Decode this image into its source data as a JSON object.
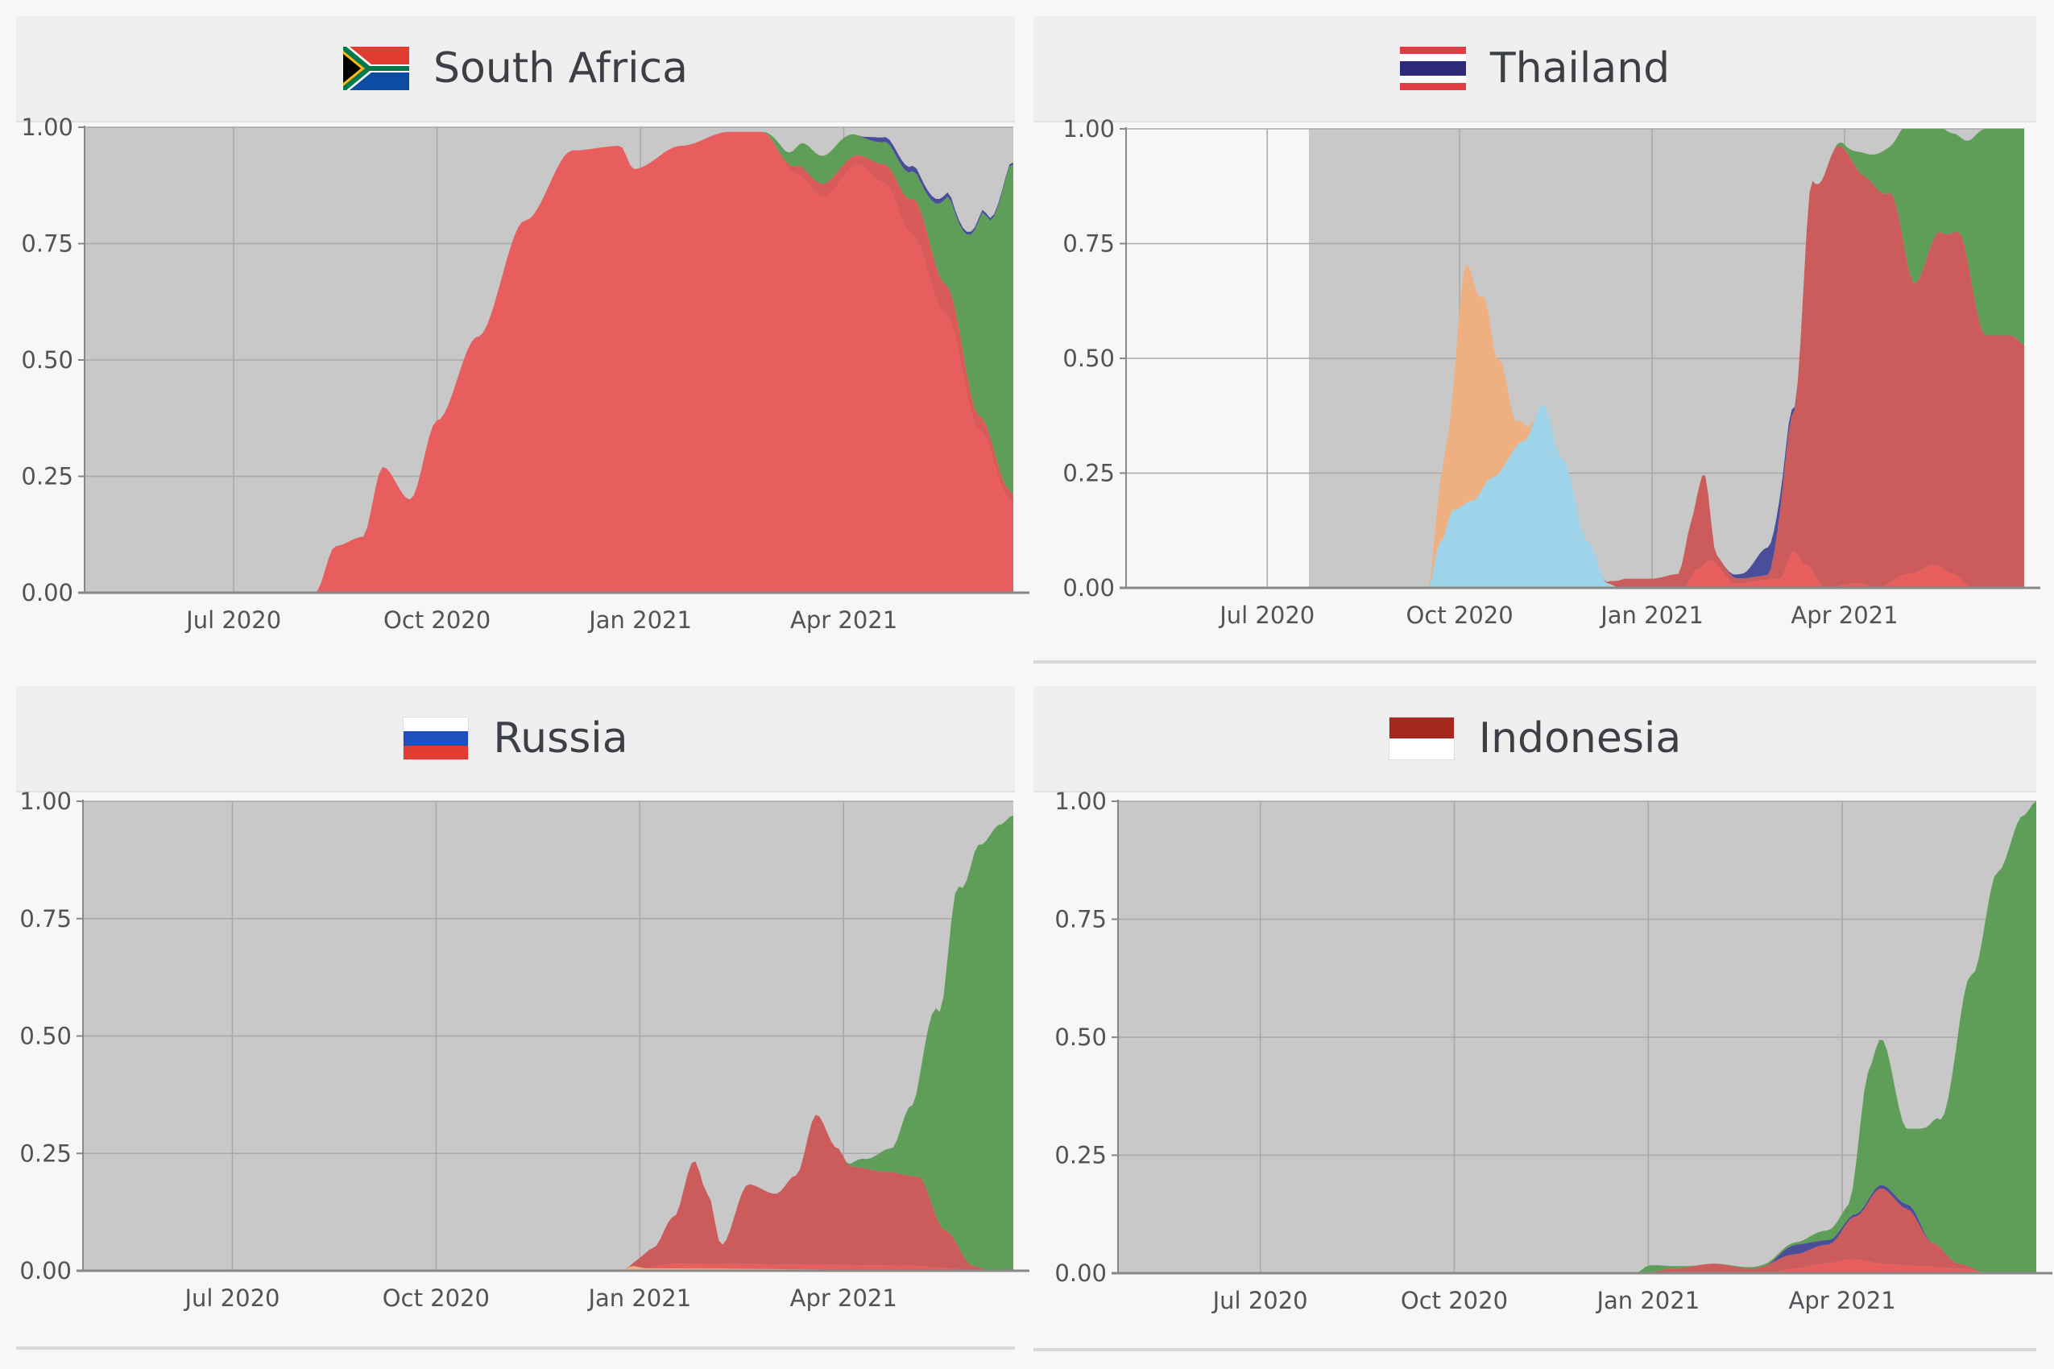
{
  "colors": {
    "plot_bg": "#c8c8c8",
    "page_bg": "#f7f7f7",
    "grid": "#a8a8a8",
    "axis": "#888888"
  },
  "panels": [
    {
      "country": "South Africa",
      "flag_icon": "south-africa-flag-icon"
    },
    {
      "country": "Thailand",
      "flag_icon": "thailand-flag-icon"
    },
    {
      "country": "Russia",
      "flag_icon": "russia-flag-icon"
    },
    {
      "country": "Indonesia",
      "flag_icon": "indonesia-flag-icon"
    }
  ],
  "chart_data": [
    {
      "type": "area",
      "title": "South Africa",
      "stacked": true,
      "x_ticks": [
        "Jul 2020",
        "Oct 2020",
        "Jan 2021",
        "Apr 2021"
      ],
      "x_tick_months": [
        4,
        7,
        10,
        13
      ],
      "y_ticks": [
        "0.00",
        "0.25",
        "0.50",
        "0.75",
        "1.00"
      ],
      "xlim": [
        1.8,
        15.5
      ],
      "ylim": [
        0,
        1
      ],
      "grid": true,
      "data_start_month": 1.8,
      "series": [
        {
          "color": "#e85d5e",
          "points": [
            [
              1.8,
              0
            ],
            [
              5.2,
              0
            ],
            [
              5.5,
              0.1
            ],
            [
              5.9,
              0.12
            ],
            [
              6.2,
              0.27
            ],
            [
              6.6,
              0.2
            ],
            [
              7.0,
              0.37
            ],
            [
              7.6,
              0.55
            ],
            [
              8.3,
              0.8
            ],
            [
              9.0,
              0.95
            ],
            [
              9.7,
              0.96
            ],
            [
              9.9,
              0.91
            ],
            [
              10.6,
              0.96
            ],
            [
              11.3,
              0.99
            ],
            [
              11.8,
              0.99
            ],
            [
              12.3,
              0.9
            ],
            [
              12.7,
              0.85
            ],
            [
              13.2,
              0.92
            ],
            [
              13.6,
              0.88
            ],
            [
              14.0,
              0.77
            ],
            [
              14.5,
              0.6
            ],
            [
              15.0,
              0.35
            ],
            [
              15.45,
              0.2
            ],
            [
              15.5,
              0.19
            ]
          ]
        },
        {
          "color": "#d95a5a",
          "points": [
            [
              1.8,
              0
            ],
            [
              12.0,
              0
            ],
            [
              12.4,
              0.02
            ],
            [
              12.8,
              0.03
            ],
            [
              13.2,
              0.02
            ],
            [
              13.6,
              0.04
            ],
            [
              14.1,
              0.08
            ],
            [
              14.6,
              0.06
            ],
            [
              15.0,
              0.03
            ],
            [
              15.5,
              0.02
            ]
          ]
        },
        {
          "color": "#5f9e59",
          "points": [
            [
              1.8,
              0
            ],
            [
              11.8,
              0
            ],
            [
              12.1,
              0.02
            ],
            [
              12.5,
              0.06
            ],
            [
              12.9,
              0.06
            ],
            [
              13.3,
              0.04
            ],
            [
              13.7,
              0.05
            ],
            [
              14.1,
              0.06
            ],
            [
              14.6,
              0.2
            ],
            [
              15.1,
              0.45
            ],
            [
              15.5,
              0.71
            ]
          ]
        },
        {
          "color": "#4a4e9a",
          "points": [
            [
              1.8,
              0
            ],
            [
              13.2,
              0
            ],
            [
              13.5,
              0.01
            ],
            [
              13.9,
              0.012
            ],
            [
              14.4,
              0.01
            ],
            [
              14.8,
              0.006
            ],
            [
              15.5,
              0.004
            ]
          ]
        }
      ]
    },
    {
      "type": "area",
      "title": "Thailand",
      "stacked": true,
      "x_ticks": [
        "Jul 2020",
        "Oct 2020",
        "Jan 2021",
        "Apr 2021"
      ],
      "x_tick_months": [
        4,
        7,
        10,
        13
      ],
      "y_ticks": [
        "0.00",
        "0.25",
        "0.50",
        "0.75",
        "1.00"
      ],
      "xlim": [
        1.8,
        15.8
      ],
      "ylim": [
        0,
        1
      ],
      "grid": true,
      "data_start_month": 4.65,
      "series": [
        {
          "color": "#9fd3ea",
          "points": [
            [
              4.65,
              0
            ],
            [
              6.5,
              0
            ],
            [
              6.7,
              0.1
            ],
            [
              6.9,
              0.17
            ],
            [
              7.2,
              0.19
            ],
            [
              7.5,
              0.24
            ],
            [
              8.0,
              0.32
            ],
            [
              8.3,
              0.4
            ],
            [
              8.6,
              0.28
            ],
            [
              9.0,
              0.1
            ],
            [
              9.3,
              0.01
            ],
            [
              9.5,
              0
            ],
            [
              15.8,
              0
            ]
          ]
        },
        {
          "color": "#efb081",
          "points": [
            [
              4.65,
              0
            ],
            [
              6.5,
              0
            ],
            [
              6.8,
              0.18
            ],
            [
              7.1,
              0.52
            ],
            [
              7.35,
              0.42
            ],
            [
              7.6,
              0.25
            ],
            [
              7.9,
              0.05
            ],
            [
              8.2,
              0
            ],
            [
              15.8,
              0
            ]
          ]
        },
        {
          "color": "#e85d5e",
          "points": [
            [
              4.65,
              0
            ],
            [
              10.5,
              0
            ],
            [
              10.7,
              0.04
            ],
            [
              10.9,
              0.06
            ],
            [
              11.3,
              0.01
            ],
            [
              12.0,
              0.02
            ],
            [
              12.2,
              0.08
            ],
            [
              12.4,
              0.05
            ],
            [
              12.7,
              0
            ],
            [
              13.2,
              0.01
            ],
            [
              13.5,
              0
            ],
            [
              14.0,
              0.03
            ],
            [
              14.4,
              0.05
            ],
            [
              14.7,
              0.03
            ],
            [
              15.0,
              0
            ],
            [
              15.8,
              0
            ]
          ]
        },
        {
          "color": "#cc5b5b",
          "points": [
            [
              4.65,
              0
            ],
            [
              9.2,
              0
            ],
            [
              9.6,
              0.02
            ],
            [
              10.0,
              0.02
            ],
            [
              10.4,
              0.03
            ],
            [
              10.6,
              0.12
            ],
            [
              10.8,
              0.2
            ],
            [
              11.0,
              0.02
            ],
            [
              11.4,
              0.01
            ],
            [
              11.8,
              0.01
            ],
            [
              12.2,
              0.3
            ],
            [
              12.5,
              0.85
            ],
            [
              12.9,
              0.96
            ],
            [
              13.3,
              0.89
            ],
            [
              13.7,
              0.85
            ],
            [
              14.1,
              0.63
            ],
            [
              14.5,
              0.73
            ],
            [
              14.8,
              0.75
            ],
            [
              15.2,
              0.55
            ],
            [
              15.6,
              0.55
            ],
            [
              15.8,
              0.53
            ]
          ]
        },
        {
          "color": "#4a4e9a",
          "points": [
            [
              4.65,
              0
            ],
            [
              11.1,
              0
            ],
            [
              11.4,
              0.01
            ],
            [
              11.8,
              0.06
            ],
            [
              12.1,
              0.02
            ],
            [
              12.3,
              0
            ],
            [
              15.8,
              0
            ]
          ]
        },
        {
          "color": "#5f9e59",
          "points": [
            [
              4.65,
              0
            ],
            [
              12.8,
              0
            ],
            [
              13.0,
              0.01
            ],
            [
              13.3,
              0.05
            ],
            [
              13.7,
              0.1
            ],
            [
              14.1,
              0.37
            ],
            [
              14.5,
              0.23
            ],
            [
              14.8,
              0.21
            ],
            [
              15.2,
              0.45
            ],
            [
              15.6,
              0.45
            ],
            [
              15.8,
              0.47
            ]
          ]
        }
      ]
    },
    {
      "type": "area",
      "title": "Russia",
      "stacked": true,
      "x_ticks": [
        "Jul 2020",
        "Oct 2020",
        "Jan 2021",
        "Apr 2021"
      ],
      "x_tick_months": [
        4,
        7,
        10,
        13
      ],
      "y_ticks": [
        "0.00",
        "0.25",
        "0.50",
        "0.75",
        "1.00"
      ],
      "xlim": [
        1.8,
        15.5
      ],
      "ylim": [
        0,
        1
      ],
      "grid": true,
      "data_start_month": 1.8,
      "series": [
        {
          "color": "#efb081",
          "points": [
            [
              1.8,
              0
            ],
            [
              9.7,
              0
            ],
            [
              9.9,
              0.01
            ],
            [
              10.1,
              0.005
            ],
            [
              15.5,
              0
            ]
          ]
        },
        {
          "color": "#e85d5e",
          "points": [
            [
              1.8,
              0
            ],
            [
              10.0,
              0
            ],
            [
              10.5,
              0.01
            ],
            [
              11.0,
              0.01
            ],
            [
              12.0,
              0.01
            ],
            [
              13.0,
              0.01
            ],
            [
              14.0,
              0.01
            ],
            [
              14.5,
              0.005
            ],
            [
              15.0,
              0
            ],
            [
              15.5,
              0
            ]
          ]
        },
        {
          "color": "#cc5b5b",
          "points": [
            [
              1.8,
              0
            ],
            [
              9.8,
              0
            ],
            [
              10.2,
              0.04
            ],
            [
              10.5,
              0.1
            ],
            [
              10.8,
              0.22
            ],
            [
              11.0,
              0.15
            ],
            [
              11.2,
              0.04
            ],
            [
              11.6,
              0.17
            ],
            [
              12.0,
              0.15
            ],
            [
              12.3,
              0.19
            ],
            [
              12.6,
              0.32
            ],
            [
              12.9,
              0.25
            ],
            [
              13.1,
              0.21
            ],
            [
              13.6,
              0.2
            ],
            [
              14.1,
              0.19
            ],
            [
              14.5,
              0.08
            ],
            [
              14.9,
              0.01
            ],
            [
              15.2,
              0
            ],
            [
              15.5,
              0
            ]
          ]
        },
        {
          "color": "#5f9e59",
          "points": [
            [
              1.8,
              0
            ],
            [
              13.0,
              0
            ],
            [
              13.3,
              0.02
            ],
            [
              13.7,
              0.05
            ],
            [
              14.0,
              0.15
            ],
            [
              14.4,
              0.45
            ],
            [
              14.7,
              0.77
            ],
            [
              15.0,
              0.9
            ],
            [
              15.3,
              0.95
            ],
            [
              15.5,
              0.97
            ]
          ]
        }
      ]
    },
    {
      "type": "area",
      "title": "Indonesia",
      "stacked": true,
      "x_ticks": [
        "Jul 2020",
        "Oct 2020",
        "Jan 2021",
        "Apr 2021"
      ],
      "x_tick_months": [
        4,
        7,
        10,
        13
      ],
      "y_ticks": [
        "0.00",
        "0.25",
        "0.50",
        "0.75",
        "1.00"
      ],
      "xlim": [
        1.8,
        16.0
      ],
      "ylim": [
        0,
        1
      ],
      "grid": true,
      "data_start_month": 1.8,
      "series": [
        {
          "color": "#e85d5e",
          "points": [
            [
              1.8,
              0
            ],
            [
              11.8,
              0
            ],
            [
              12.3,
              0.01
            ],
            [
              12.7,
              0.02
            ],
            [
              13.2,
              0.03
            ],
            [
              13.6,
              0.02
            ],
            [
              14.2,
              0.015
            ],
            [
              14.8,
              0.01
            ],
            [
              15.3,
              0
            ],
            [
              16.0,
              0
            ]
          ]
        },
        {
          "color": "#cc5b5b",
          "points": [
            [
              1.8,
              0
            ],
            [
              9.9,
              0
            ],
            [
              10.4,
              0.01
            ],
            [
              11.0,
              0.02
            ],
            [
              11.6,
              0.01
            ],
            [
              12.2,
              0.03
            ],
            [
              12.8,
              0.04
            ],
            [
              13.2,
              0.09
            ],
            [
              13.6,
              0.16
            ],
            [
              14.0,
              0.12
            ],
            [
              14.4,
              0.05
            ],
            [
              14.8,
              0.01
            ],
            [
              15.2,
              0
            ],
            [
              16.0,
              0
            ]
          ]
        },
        {
          "color": "#4a4e9a",
          "points": [
            [
              1.8,
              0
            ],
            [
              11.8,
              0
            ],
            [
              12.3,
              0.02
            ],
            [
              12.7,
              0.01
            ],
            [
              13.2,
              0.005
            ],
            [
              14.1,
              0.01
            ],
            [
              14.4,
              0
            ],
            [
              16.0,
              0
            ]
          ]
        },
        {
          "color": "#5f9e59",
          "points": [
            [
              1.8,
              0
            ],
            [
              9.8,
              0
            ],
            [
              10.0,
              0.015
            ],
            [
              10.4,
              0.005
            ],
            [
              10.8,
              0
            ],
            [
              12.3,
              0.005
            ],
            [
              12.7,
              0.02
            ],
            [
              13.1,
              0.03
            ],
            [
              13.4,
              0.27
            ],
            [
              13.6,
              0.31
            ],
            [
              14.0,
              0.16
            ],
            [
              14.5,
              0.27
            ],
            [
              15.0,
              0.62
            ],
            [
              15.4,
              0.85
            ],
            [
              15.8,
              0.97
            ],
            [
              16.0,
              1.0
            ]
          ]
        }
      ]
    }
  ]
}
